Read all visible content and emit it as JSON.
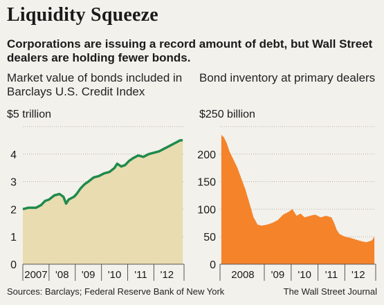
{
  "header": {
    "title": "Liquidity Squeeze",
    "subtitle": "Corporations are issuing a record amount of debt, but Wall Street dealers are holding fewer bonds."
  },
  "footer": {
    "source": "Sources: Barclays; Federal Reserve Bank of New York",
    "credit": "The Wall Street Journal"
  },
  "colors": {
    "left_line": "#1f8a4c",
    "left_fill": "#e8dcb0",
    "right_fill": "#f5832a",
    "gridline": "#b8b2a6",
    "axis": "#555555"
  },
  "chart_data": [
    {
      "type": "area",
      "title": "Market value of bonds included in Barclays U.S. Credit Index",
      "unit_label": "$5 trillion",
      "y_ticks": [
        "",
        "4",
        "3",
        "2",
        "1",
        "0"
      ],
      "x_tick_labels": [
        "2007",
        "'08",
        "'09",
        "'10",
        "'11",
        "'12"
      ],
      "ylim": [
        0,
        5
      ],
      "xlim": [
        2007,
        2013.15
      ],
      "grid": true,
      "series": [
        {
          "x": [
            2007.0,
            2007.2,
            2007.5,
            2007.7,
            2007.85,
            2008.0,
            2008.2,
            2008.4,
            2008.55,
            2008.65,
            2008.75,
            2008.85,
            2008.95,
            2009.05,
            2009.2,
            2009.35,
            2009.5,
            2009.7,
            2009.9,
            2010.1,
            2010.3,
            2010.5,
            2010.6,
            2010.75,
            2010.9,
            2011.05,
            2011.2,
            2011.4,
            2011.6,
            2011.8,
            2012.0,
            2012.2,
            2012.4,
            2012.6,
            2012.8,
            2013.0,
            2013.1
          ],
          "values": [
            2.0,
            2.05,
            2.05,
            2.15,
            2.3,
            2.35,
            2.5,
            2.55,
            2.45,
            2.2,
            2.35,
            2.4,
            2.45,
            2.55,
            2.75,
            2.9,
            3.0,
            3.15,
            3.2,
            3.3,
            3.35,
            3.5,
            3.65,
            3.55,
            3.6,
            3.75,
            3.85,
            3.95,
            3.9,
            4.0,
            4.05,
            4.1,
            4.2,
            4.3,
            4.4,
            4.5,
            4.5
          ]
        }
      ]
    },
    {
      "type": "area",
      "title": "Bond inventory at primary dealers",
      "unit_label": "$250 billion",
      "y_ticks": [
        "",
        "200",
        "150",
        "100",
        "50",
        "0"
      ],
      "x_tick_labels": [
        "2008",
        "'09",
        "'10",
        "'11",
        "'12"
      ],
      "ylim": [
        0,
        250
      ],
      "xlim": [
        2007.35,
        2013.15
      ],
      "grid": true,
      "series": [
        {
          "x": [
            2007.4,
            2007.5,
            2007.6,
            2007.7,
            2007.8,
            2007.9,
            2008.0,
            2008.15,
            2008.3,
            2008.45,
            2008.6,
            2008.75,
            2008.9,
            2009.1,
            2009.3,
            2009.5,
            2009.7,
            2009.9,
            2010.05,
            2010.2,
            2010.35,
            2010.5,
            2010.7,
            2010.9,
            2011.1,
            2011.3,
            2011.5,
            2011.6,
            2011.7,
            2011.8,
            2012.0,
            2012.2,
            2012.4,
            2012.6,
            2012.8,
            2013.0,
            2013.1
          ],
          "values": [
            235,
            230,
            220,
            205,
            195,
            185,
            175,
            155,
            135,
            110,
            85,
            72,
            70,
            72,
            75,
            80,
            90,
            95,
            100,
            88,
            92,
            85,
            88,
            90,
            85,
            88,
            85,
            75,
            62,
            55,
            50,
            48,
            45,
            42,
            40,
            43,
            50
          ]
        }
      ]
    }
  ]
}
